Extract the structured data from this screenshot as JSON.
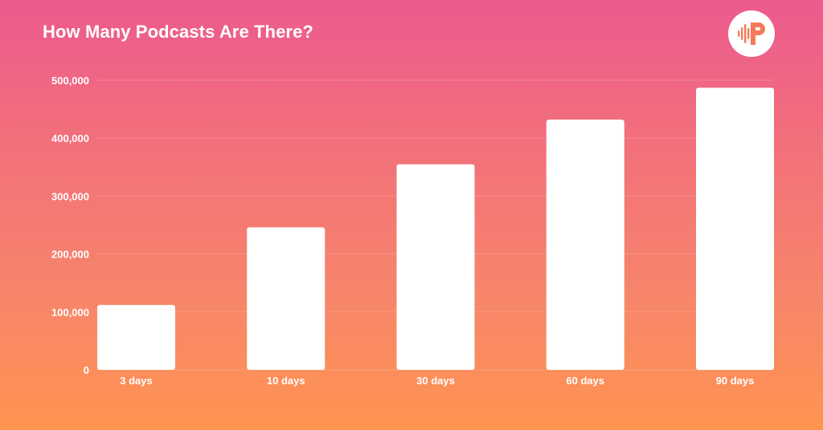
{
  "chart_data": {
    "type": "bar",
    "title": "How Many Podcasts Are There?",
    "xlabel": "",
    "ylabel": "",
    "categories": [
      "3 days",
      "10 days",
      "30 days",
      "60 days",
      "90 days"
    ],
    "values": [
      112000,
      246000,
      355000,
      432000,
      487000
    ],
    "ylim": [
      0,
      500000
    ],
    "yticks": [
      0,
      100000,
      200000,
      300000,
      400000,
      500000
    ],
    "ytick_labels": [
      "0",
      "100,000",
      "200,000",
      "300,000",
      "400,000",
      "500,000"
    ],
    "grid": true,
    "legend": "none"
  },
  "colors": {
    "bar": "#ffffff",
    "gradient_top": "#ec5a8e",
    "gradient_bottom": "#ff9450",
    "logo_accent": "#f47a5a"
  },
  "logo": {
    "icon": "podcast-p-logo-icon"
  }
}
